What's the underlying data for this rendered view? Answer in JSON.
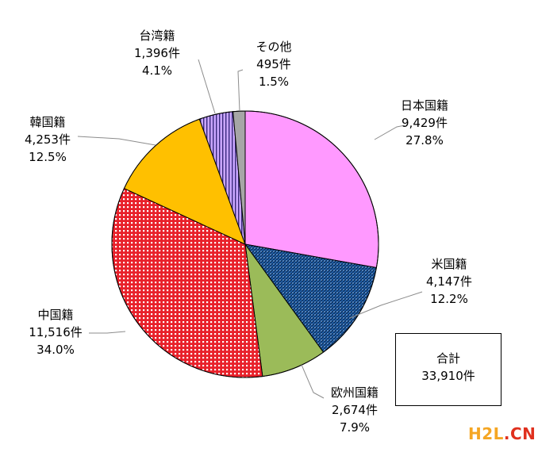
{
  "chart_data": {
    "type": "pie",
    "unit": "件",
    "start_angle_deg": 0,
    "direction": "clockwise",
    "slices": [
      {
        "name": "日本国籍",
        "count": "9,429件",
        "percent": "27.8%",
        "value": 9429,
        "share": 27.8,
        "color": "#ff99ff",
        "pattern": "solid"
      },
      {
        "name": "米国籍",
        "count": "4,147件",
        "percent": "12.2%",
        "value": 4147,
        "share": 12.2,
        "color": "#1f5fa8",
        "pattern": "diagonal-dots"
      },
      {
        "name": "欧州国籍",
        "count": "2,674件",
        "percent": "7.9%",
        "value": 2674,
        "share": 7.9,
        "color": "#9bbb59",
        "pattern": "solid"
      },
      {
        "name": "中国籍",
        "count": "11,516件",
        "percent": "34.0%",
        "value": 11516,
        "share": 34.0,
        "color": "#e8202a",
        "pattern": "grid"
      },
      {
        "name": "韓国籍",
        "count": "4,253件",
        "percent": "12.5%",
        "value": 4253,
        "share": 12.5,
        "color": "#ffc000",
        "pattern": "solid"
      },
      {
        "name": "台湾籍",
        "count": "1,396件",
        "percent": "4.1%",
        "value": 1396,
        "share": 4.1,
        "color": "#b58cf0",
        "pattern": "vertical-stripes"
      },
      {
        "name": "その他",
        "count": "495件",
        "percent": "1.5%",
        "value": 495,
        "share": 1.5,
        "color": "#a6a6a6",
        "pattern": "solid"
      }
    ]
  },
  "total": {
    "label": "合計",
    "value": "33,910件"
  },
  "watermark": {
    "part1": "H2L",
    "part2": ".CN"
  }
}
